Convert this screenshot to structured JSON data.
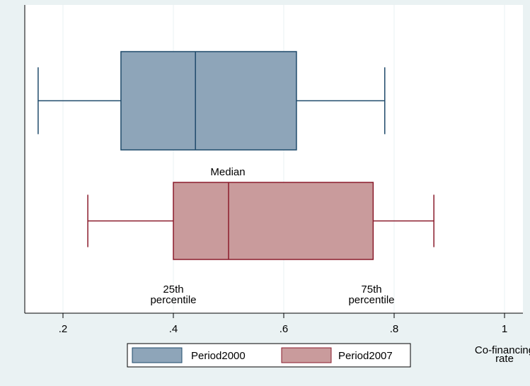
{
  "chart_data": {
    "type": "boxplot",
    "orientation": "horizontal",
    "xlabel": [
      "Co-financing",
      "rate"
    ],
    "xlim": [
      0.135,
      1.0
    ],
    "xticks": [
      0.2,
      0.4,
      0.6,
      0.8,
      1.0
    ],
    "xtick_labels": [
      ".2",
      ".4",
      ".6",
      ".8",
      "1"
    ],
    "grid": "vertical",
    "legend_position": "bottom",
    "series": [
      {
        "name": "Period2000",
        "color": "#8ea5b9",
        "edge": "#1f4a6b",
        "whisker_low": 0.155,
        "q1": 0.305,
        "median": 0.44,
        "q3": 0.623,
        "whisker_high": 0.783
      },
      {
        "name": "Period2007",
        "color": "#c99b9c",
        "edge": "#8a1b2b",
        "whisker_low": 0.245,
        "q1": 0.4,
        "median": 0.5,
        "q3": 0.762,
        "whisker_high": 0.872
      }
    ],
    "annotations": {
      "median": "Median",
      "p25": [
        "25th",
        "percentile"
      ],
      "p75": [
        "75th",
        "percentile"
      ]
    }
  }
}
